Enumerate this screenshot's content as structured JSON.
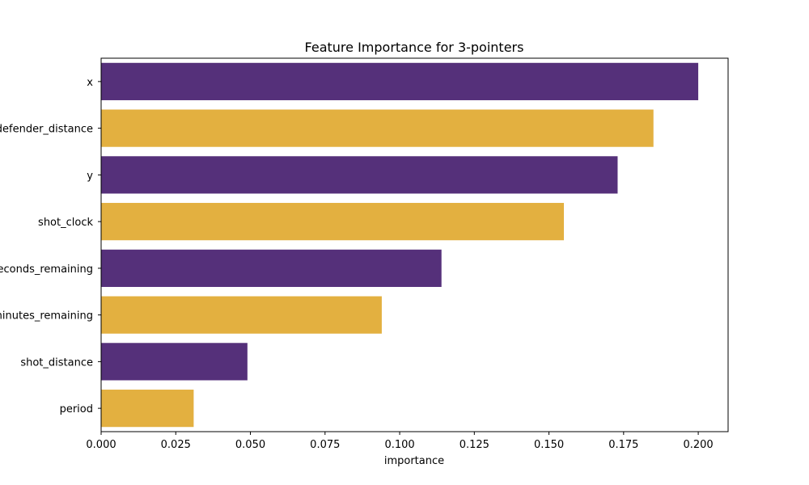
{
  "chart_data": {
    "type": "bar",
    "orientation": "horizontal",
    "title": "Feature Importance for 3-pointers",
    "xlabel": "importance",
    "ylabel": "",
    "xlim": [
      0,
      0.21
    ],
    "xticks": [
      "0.000",
      "0.025",
      "0.050",
      "0.075",
      "0.100",
      "0.125",
      "0.150",
      "0.175",
      "0.200"
    ],
    "categories": [
      "x",
      "defender_distance",
      "y",
      "shot_clock",
      "seconds_remaining",
      "minutes_remaining",
      "shot_distance",
      "period"
    ],
    "values": [
      0.2,
      0.185,
      0.173,
      0.155,
      0.114,
      0.094,
      0.049,
      0.031
    ],
    "colors": [
      "#55307a",
      "#e3b040",
      "#55307a",
      "#e3b040",
      "#55307a",
      "#e3b040",
      "#55307a",
      "#e3b040"
    ],
    "grid": false,
    "legend": "none"
  }
}
